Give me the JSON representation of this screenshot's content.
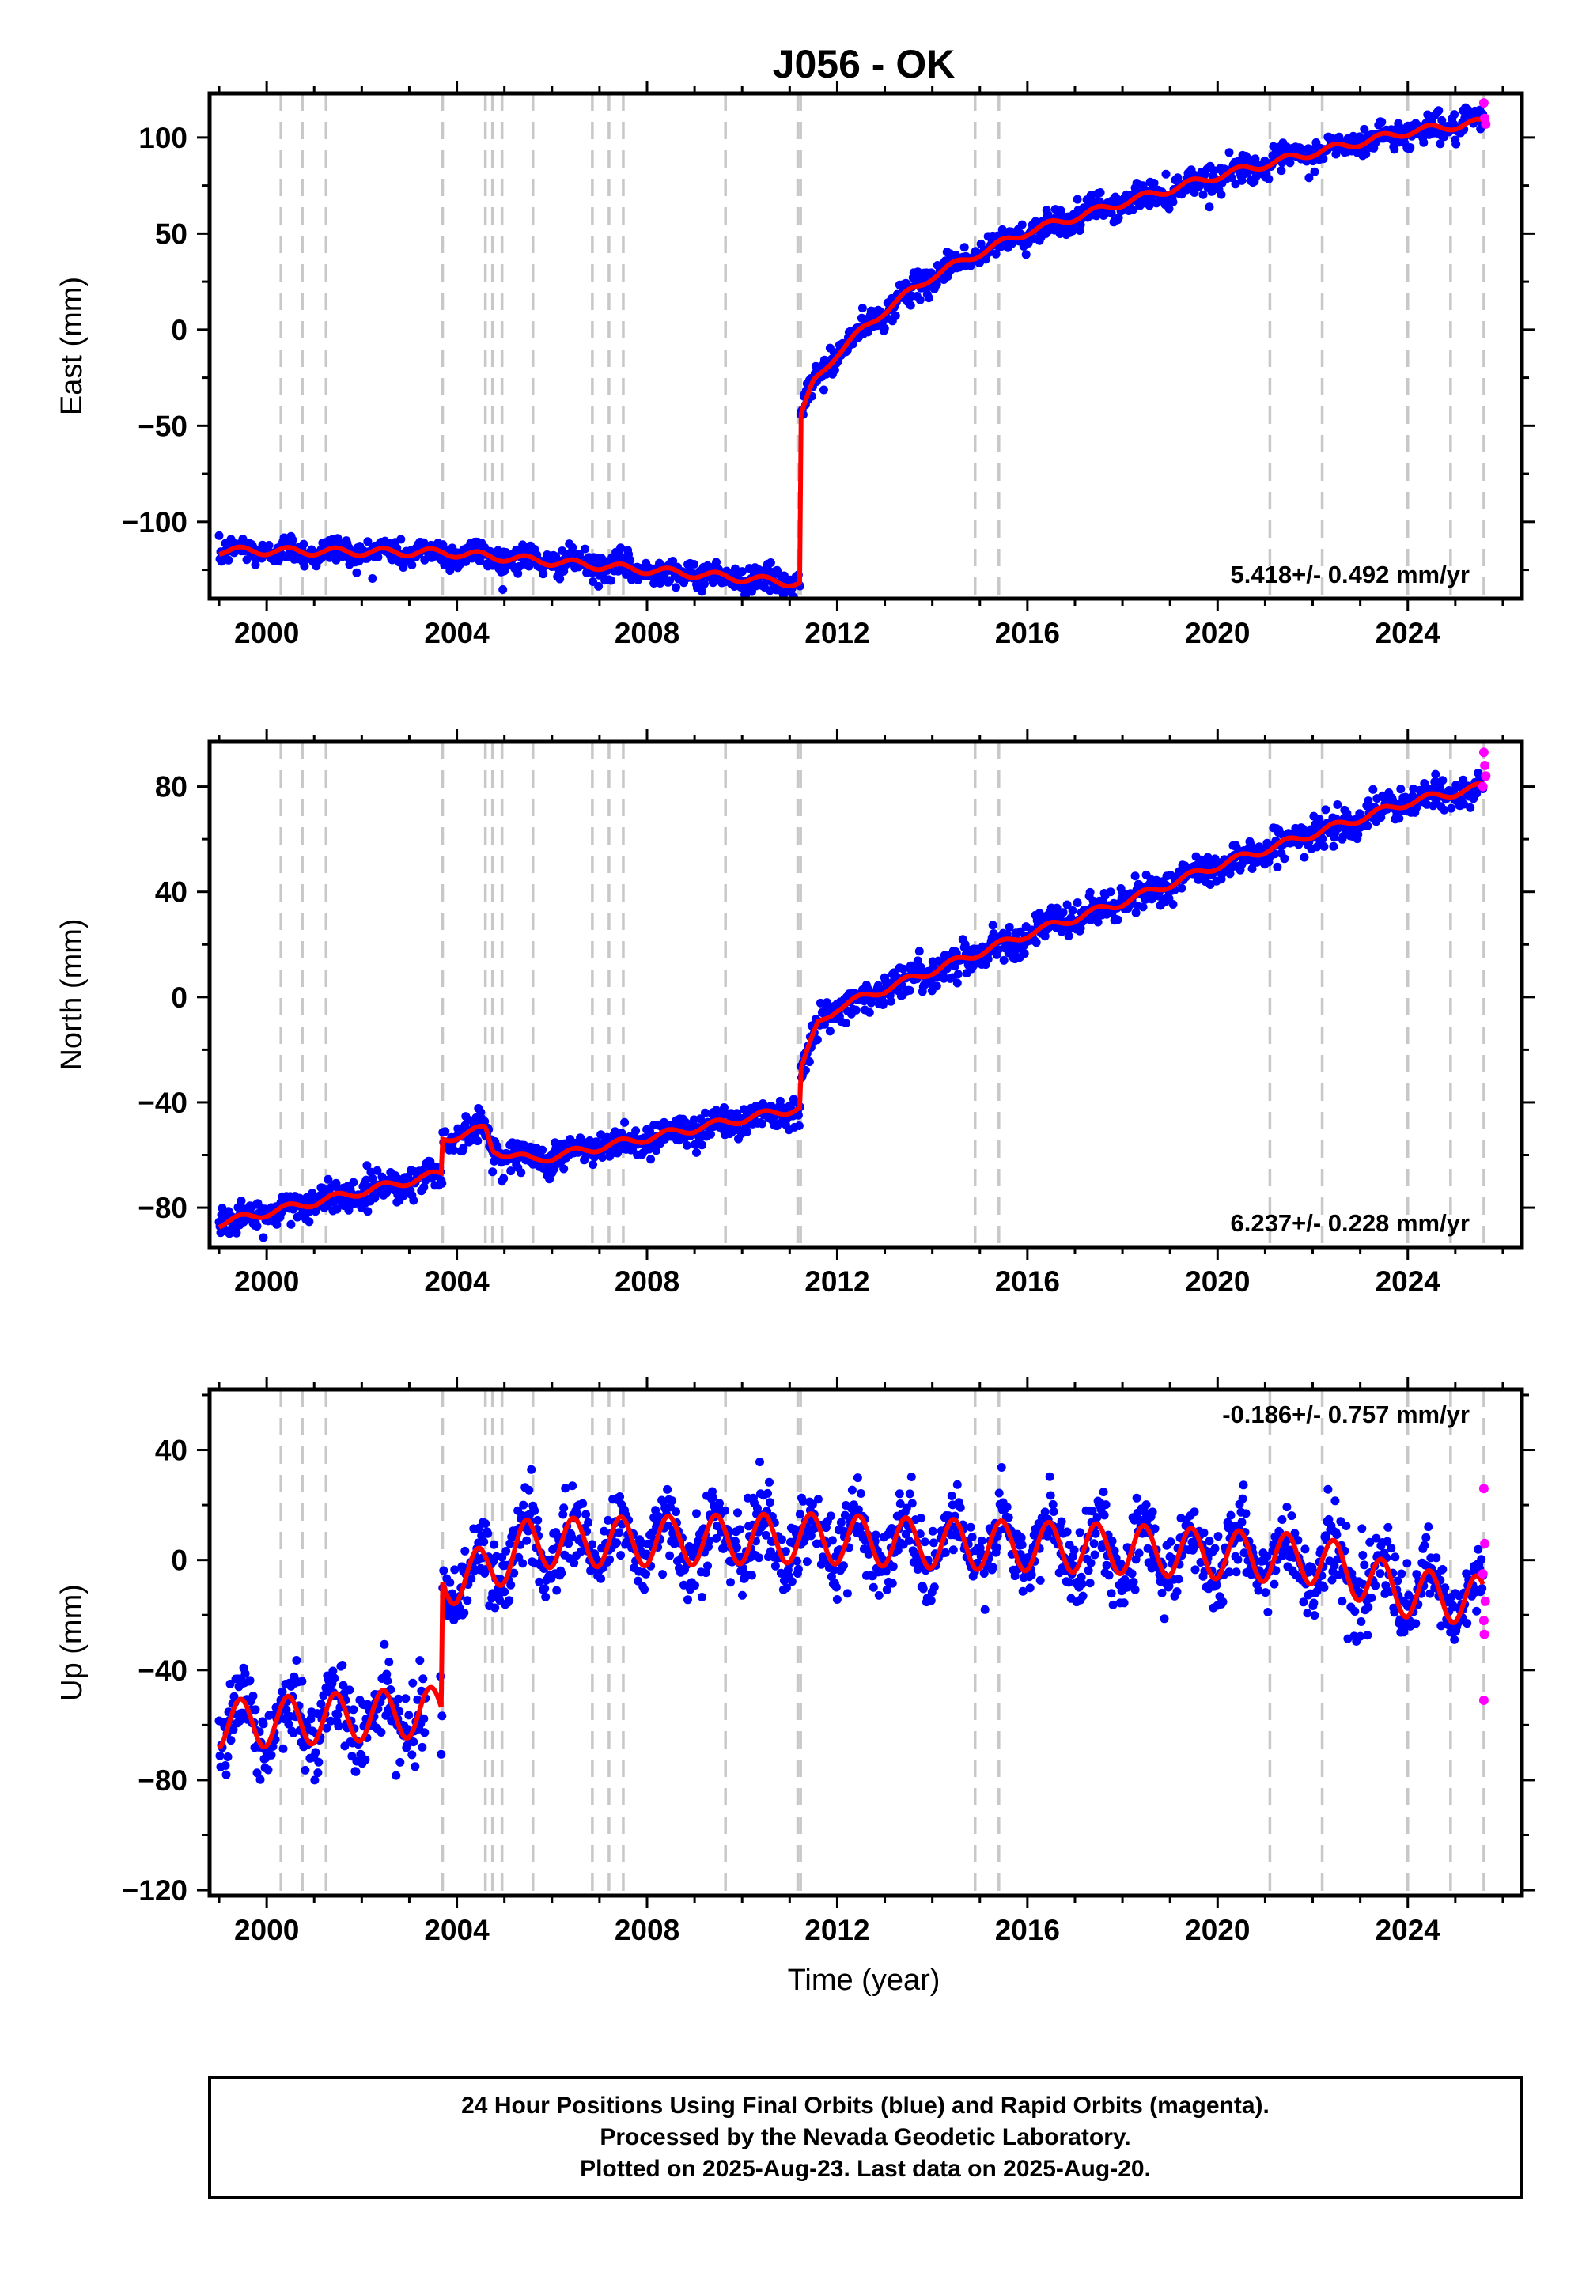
{
  "title": "J056 - OK",
  "xlabel": "Time (year)",
  "x_ticks": [
    2000,
    2004,
    2008,
    2012,
    2016,
    2020,
    2024
  ],
  "xlim": [
    1998.8,
    2026.4
  ],
  "vertical_lines": [
    2000.3,
    2000.75,
    2001.25,
    2003.7,
    2004.6,
    2004.75,
    2004.95,
    2005.6,
    2006.85,
    2007.2,
    2007.5,
    2009.65,
    2011.17,
    2011.23,
    2014.9,
    2015.4,
    2021.1,
    2022.2,
    2024.0,
    2024.9,
    2025.6
  ],
  "colors": {
    "final_orbits": "#0000ff",
    "rapid_orbits": "#ff00ff",
    "model": "#ff0000",
    "event_lines": "#c8c8c8"
  },
  "chart_data": [
    {
      "type": "scatter",
      "component": "east",
      "ylabel": "East (mm)",
      "ylim": [
        -140,
        123
      ],
      "y_ticks": [
        -100,
        -50,
        0,
        50,
        100
      ],
      "rate_label": "5.418+/- 0.492 mm/yr",
      "rate_position": "bottom-right",
      "model_breakpoints": [
        [
          1999.0,
          -115
        ],
        [
          2003.75,
          -116
        ],
        [
          2011.23,
          -132
        ],
        [
          2011.23,
          -45
        ],
        [
          2011.5,
          -28
        ],
        [
          2012.0,
          -12
        ],
        [
          2013.0,
          10
        ],
        [
          2014.0,
          28
        ],
        [
          2015.0,
          40
        ],
        [
          2016.0,
          51
        ],
        [
          2018.0,
          66
        ],
        [
          2020.0,
          80
        ],
        [
          2022.0,
          92
        ],
        [
          2024.0,
          103
        ],
        [
          2025.6,
          108
        ]
      ],
      "noise_mm": 3.5,
      "seasonal_mm": 2,
      "rapid_points": [
        [
          2025.6,
          118
        ],
        [
          2025.62,
          110
        ],
        [
          2025.64,
          107
        ]
      ]
    },
    {
      "type": "scatter",
      "component": "north",
      "ylabel": "North (mm)",
      "ylim": [
        -95,
        97
      ],
      "y_ticks": [
        -80,
        -40,
        0,
        40,
        80
      ],
      "rate_label": "6.237+/- 0.228 mm/yr",
      "rate_position": "bottom-right",
      "model_breakpoints": [
        [
          1999.0,
          -86
        ],
        [
          2003.7,
          -67
        ],
        [
          2003.7,
          -54
        ],
        [
          2004.6,
          -50
        ],
        [
          2004.75,
          -58
        ],
        [
          2005.6,
          -62
        ],
        [
          2011.23,
          -42
        ],
        [
          2011.23,
          -28
        ],
        [
          2011.6,
          -10
        ],
        [
          2012.0,
          -4
        ],
        [
          2014.0,
          10
        ],
        [
          2016.0,
          24
        ],
        [
          2018.0,
          36
        ],
        [
          2020.0,
          50
        ],
        [
          2022.0,
          62
        ],
        [
          2024.0,
          74
        ],
        [
          2025.6,
          80
        ]
      ],
      "noise_mm": 3,
      "seasonal_mm": 1.5,
      "rapid_points": [
        [
          2025.6,
          93
        ],
        [
          2025.62,
          88
        ],
        [
          2025.64,
          84
        ],
        [
          2025.58,
          80
        ]
      ]
    },
    {
      "type": "scatter",
      "component": "up",
      "ylabel": "Up (mm)",
      "ylim": [
        -122,
        62
      ],
      "y_ticks": [
        -120,
        -80,
        -40,
        0,
        40
      ],
      "rate_label": "-0.186+/- 0.757 mm/yr",
      "rate_position": "top-right",
      "model_breakpoints": [
        [
          1999.0,
          -60
        ],
        [
          2003.7,
          -55
        ],
        [
          2003.7,
          -8
        ],
        [
          2004.6,
          -4
        ],
        [
          2005.5,
          6
        ],
        [
          2011.23,
          8
        ],
        [
          2014.0,
          6
        ],
        [
          2018.0,
          4
        ],
        [
          2022.2,
          0
        ],
        [
          2023.0,
          -6
        ],
        [
          2024.0,
          -12
        ],
        [
          2025.6,
          -15
        ]
      ],
      "noise_mm": 7,
      "seasonal_mm": 9,
      "rapid_points": [
        [
          2025.6,
          26
        ],
        [
          2025.62,
          6
        ],
        [
          2025.58,
          -5
        ],
        [
          2025.63,
          -15
        ],
        [
          2025.6,
          -22
        ],
        [
          2025.61,
          -27
        ],
        [
          2025.6,
          -51
        ]
      ]
    }
  ],
  "info_box": {
    "line1": "24 Hour Positions Using Final Orbits (blue) and Rapid Orbits (magenta).",
    "line2": "Processed by the Nevada Geodetic Laboratory.",
    "line3": "Plotted on 2025-Aug-23. Last data on 2025-Aug-20."
  }
}
